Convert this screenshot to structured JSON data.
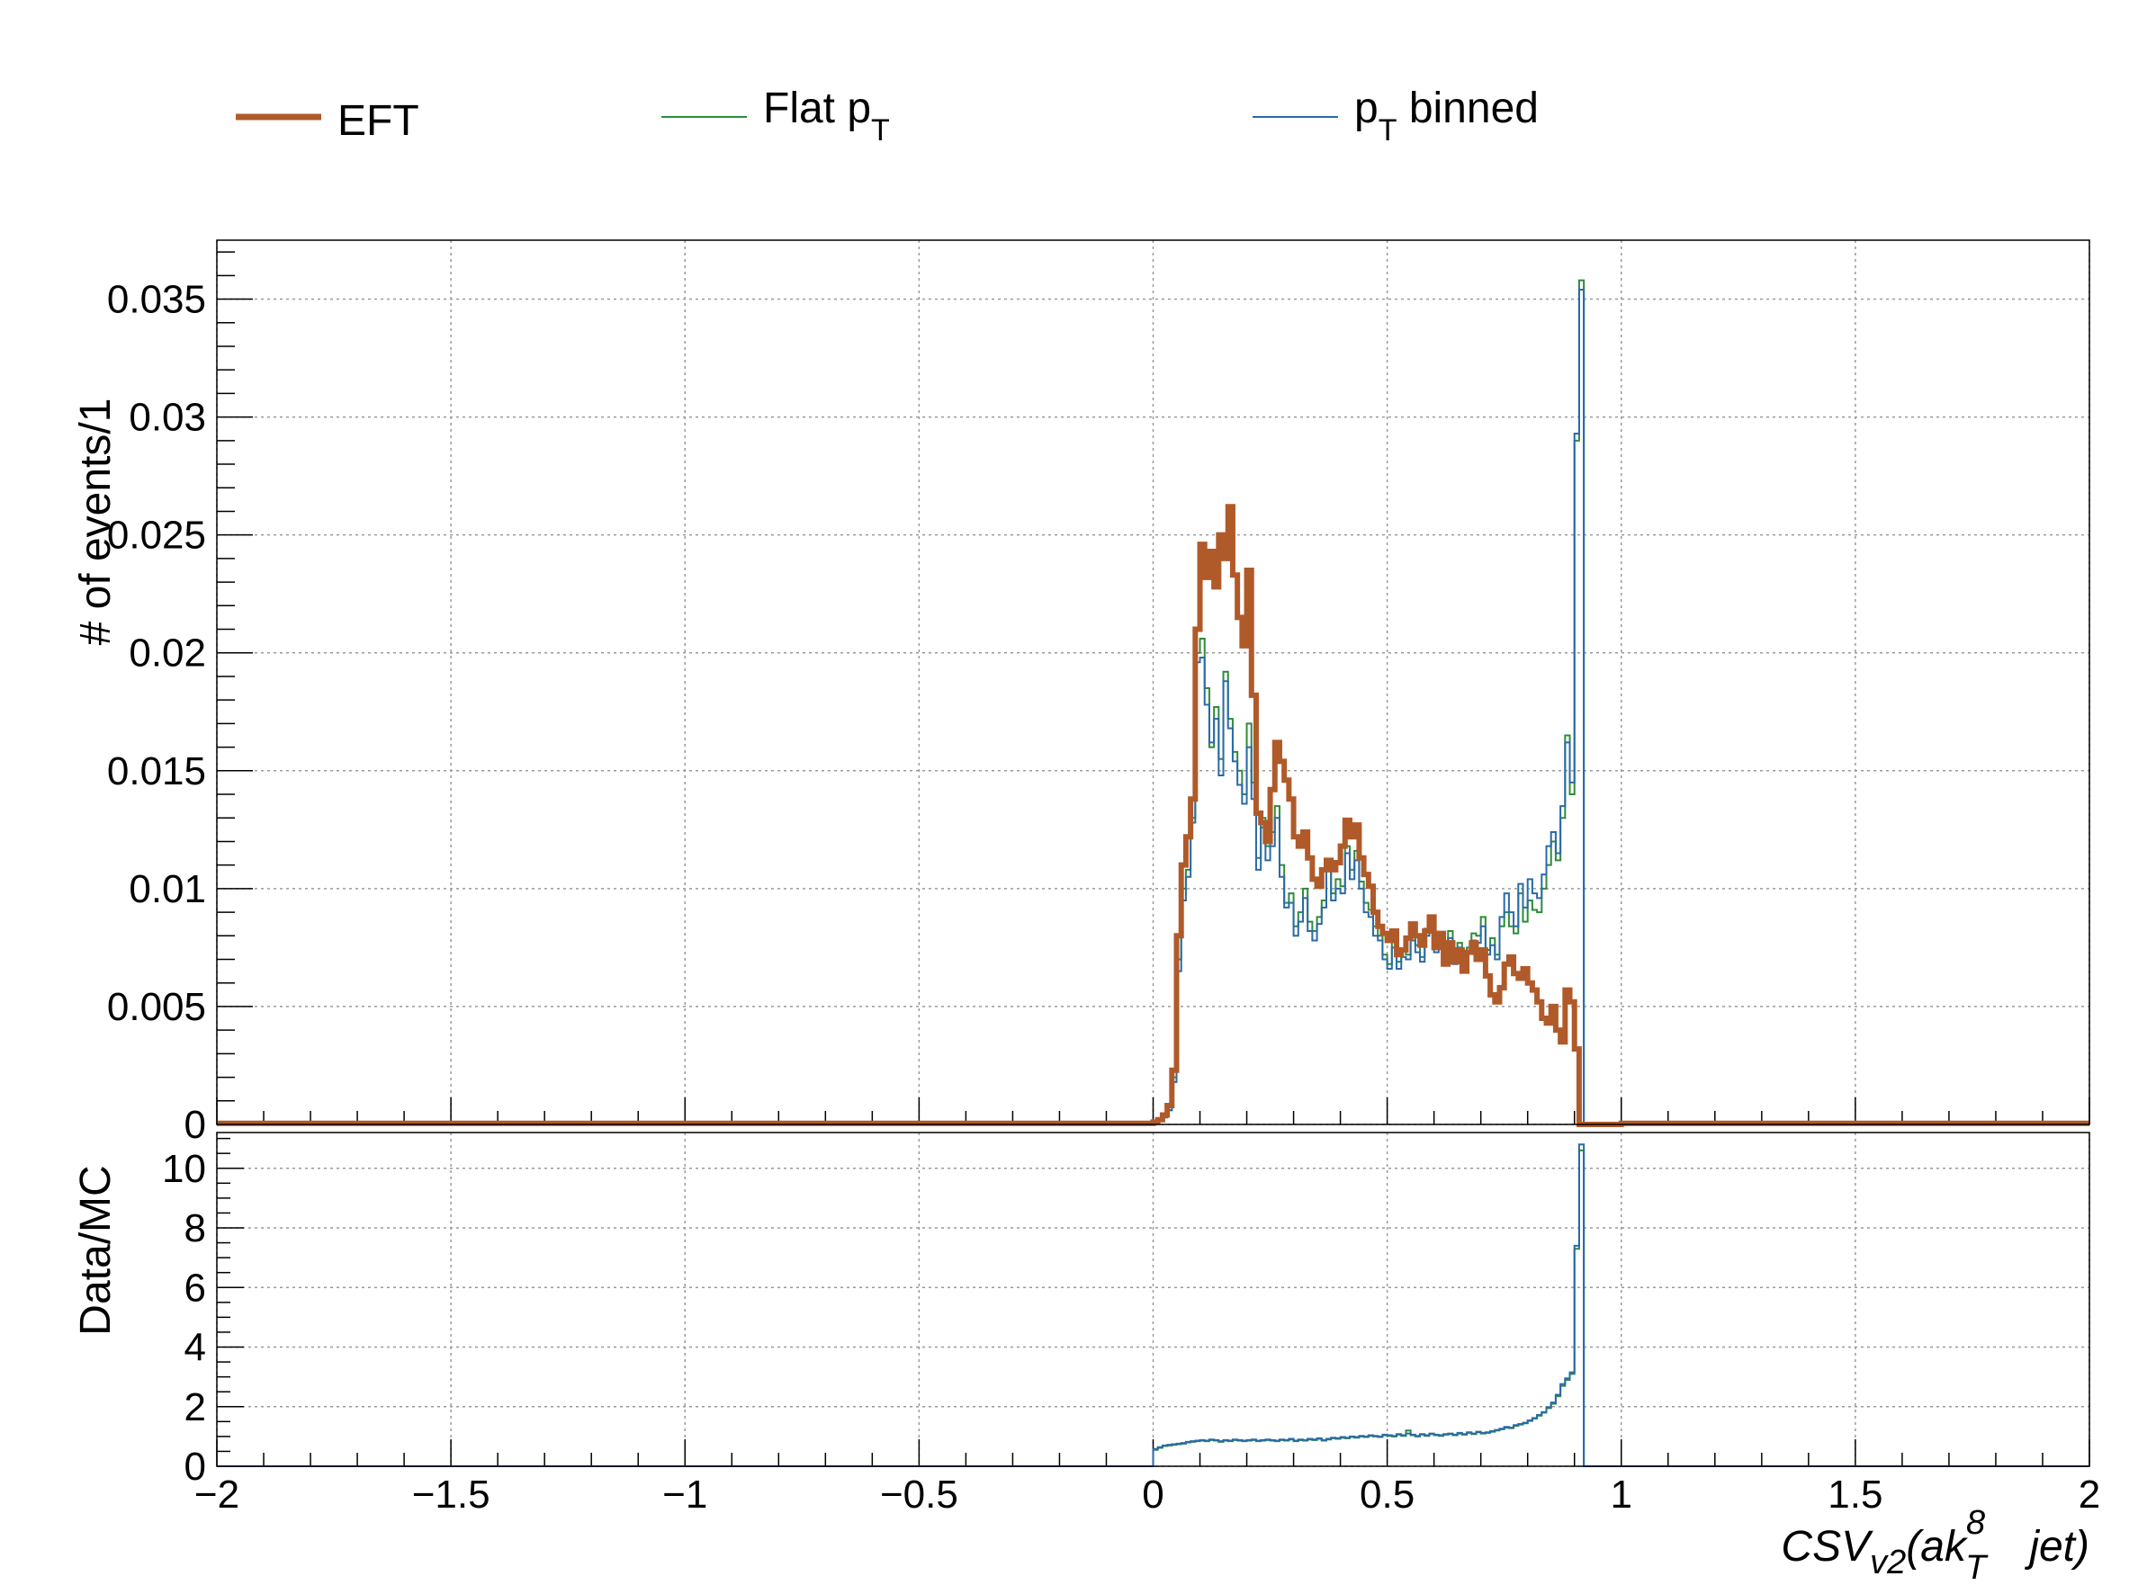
{
  "legend": [
    {
      "name": "EFT",
      "color": "#b05a2a"
    },
    {
      "name_main": "Flat p",
      "name_sub": "T",
      "color": "#2e8b3a"
    },
    {
      "name_main": "p",
      "name_sub": "T",
      "name_rest": " binned",
      "color": "#2a6aa8"
    }
  ],
  "chart_data": [
    {
      "type": "line",
      "style": "step-histogram",
      "ylabel": "# of events/1",
      "xlim": [
        -2,
        2
      ],
      "ylim": [
        0,
        0.0375
      ],
      "grid": true,
      "legend_position": "top",
      "x_tick_labels": [
        -2,
        -1.5,
        -1,
        -0.5,
        0,
        0.5,
        1,
        1.5,
        2
      ],
      "y_tick_labels": [
        "0",
        "0.005",
        "0.01",
        "0.015",
        "0.02",
        "0.025",
        "0.03",
        "0.035"
      ],
      "x": [
        0.0,
        0.01,
        0.02,
        0.03,
        0.04,
        0.05,
        0.06,
        0.07,
        0.08,
        0.09,
        0.1,
        0.11,
        0.12,
        0.13,
        0.14,
        0.15,
        0.16,
        0.17,
        0.18,
        0.19,
        0.2,
        0.21,
        0.22,
        0.23,
        0.24,
        0.25,
        0.26,
        0.27,
        0.28,
        0.29,
        0.3,
        0.31,
        0.32,
        0.33,
        0.34,
        0.35,
        0.36,
        0.37,
        0.38,
        0.39,
        0.4,
        0.41,
        0.42,
        0.43,
        0.44,
        0.45,
        0.46,
        0.47,
        0.48,
        0.49,
        0.5,
        0.51,
        0.52,
        0.53,
        0.54,
        0.55,
        0.56,
        0.57,
        0.58,
        0.59,
        0.6,
        0.61,
        0.62,
        0.63,
        0.64,
        0.65,
        0.66,
        0.67,
        0.68,
        0.69,
        0.7,
        0.71,
        0.72,
        0.73,
        0.74,
        0.75,
        0.76,
        0.77,
        0.78,
        0.79,
        0.8,
        0.81,
        0.82,
        0.83,
        0.84,
        0.85,
        0.86,
        0.87,
        0.88,
        0.89,
        0.9,
        0.91,
        0.92,
        0.93,
        0.94,
        0.95,
        0.96,
        0.97,
        0.98,
        0.99
      ],
      "series": [
        {
          "name": "EFT",
          "color": "#b05a2a",
          "line_width": 6,
          "values": [
            0.0001,
            0.0002,
            0.0004,
            0.0008,
            0.0023,
            0.008,
            0.011,
            0.0122,
            0.0138,
            0.021,
            0.0246,
            0.0232,
            0.0243,
            0.0228,
            0.025,
            0.024,
            0.0262,
            0.0233,
            0.0215,
            0.0203,
            0.0235,
            0.0182,
            0.0132,
            0.0128,
            0.012,
            0.0142,
            0.0162,
            0.0154,
            0.0146,
            0.0138,
            0.0122,
            0.0118,
            0.0124,
            0.0113,
            0.0104,
            0.0101,
            0.0108,
            0.0112,
            0.0108,
            0.0111,
            0.0118,
            0.0129,
            0.0122,
            0.0127,
            0.0113,
            0.0106,
            0.0101,
            0.009,
            0.0084,
            0.0081,
            0.0078,
            0.0082,
            0.0072,
            0.0074,
            0.0079,
            0.0085,
            0.008,
            0.0076,
            0.0082,
            0.0088,
            0.0075,
            0.0081,
            0.0068,
            0.0077,
            0.0069,
            0.0074,
            0.0065,
            0.0073,
            0.0077,
            0.007,
            0.0074,
            0.0063,
            0.0055,
            0.0052,
            0.0058,
            0.0068,
            0.0071,
            0.0064,
            0.0062,
            0.0066,
            0.006,
            0.0057,
            0.0052,
            0.0045,
            0.0043,
            0.005,
            0.004,
            0.0035,
            0.0057,
            0.0052,
            0.0032,
            0.0,
            0.0,
            0.0,
            0.0,
            0.0,
            0.0,
            0.0,
            0.0,
            0.0
          ]
        },
        {
          "name": "Flat pT",
          "color": "#2e8b3a",
          "line_width": 2,
          "values": [
            0.0001,
            0.0002,
            0.0003,
            0.0006,
            0.002,
            0.007,
            0.01,
            0.0108,
            0.013,
            0.02,
            0.0206,
            0.0185,
            0.016,
            0.0177,
            0.0155,
            0.0192,
            0.0172,
            0.0158,
            0.015,
            0.014,
            0.017,
            0.0145,
            0.0113,
            0.013,
            0.0118,
            0.0124,
            0.0135,
            0.011,
            0.0094,
            0.0098,
            0.0084,
            0.009,
            0.01,
            0.0086,
            0.0082,
            0.0088,
            0.0095,
            0.0112,
            0.0098,
            0.0104,
            0.0101,
            0.0118,
            0.0108,
            0.0116,
            0.0103,
            0.0094,
            0.0091,
            0.0084,
            0.008,
            0.0072,
            0.0068,
            0.0078,
            0.0069,
            0.0074,
            0.0072,
            0.008,
            0.0076,
            0.0071,
            0.0083,
            0.0086,
            0.0076,
            0.0078,
            0.0072,
            0.0082,
            0.007,
            0.0077,
            0.0069,
            0.0075,
            0.0081,
            0.008,
            0.0088,
            0.0074,
            0.0079,
            0.0072,
            0.0084,
            0.009,
            0.0084,
            0.0081,
            0.0098,
            0.0086,
            0.0095,
            0.0091,
            0.009,
            0.01,
            0.011,
            0.012,
            0.0112,
            0.013,
            0.0165,
            0.014,
            0.029,
            0.0358,
            0.0,
            0.0,
            0.0,
            0.0,
            0.0,
            0.0,
            0.0,
            0.0
          ]
        },
        {
          "name": "pT binned",
          "color": "#2a6aa8",
          "line_width": 2,
          "values": [
            0.0001,
            0.0002,
            0.0003,
            0.0006,
            0.0018,
            0.0065,
            0.0095,
            0.0105,
            0.0128,
            0.0196,
            0.0198,
            0.0178,
            0.0162,
            0.0172,
            0.0148,
            0.0188,
            0.0168,
            0.0154,
            0.0144,
            0.0136,
            0.016,
            0.0138,
            0.0108,
            0.0126,
            0.0112,
            0.0118,
            0.013,
            0.0105,
            0.0092,
            0.0094,
            0.008,
            0.0086,
            0.0096,
            0.0082,
            0.0078,
            0.0085,
            0.0092,
            0.0108,
            0.0095,
            0.01,
            0.0098,
            0.0115,
            0.0104,
            0.0112,
            0.01,
            0.009,
            0.0088,
            0.008,
            0.0078,
            0.007,
            0.0066,
            0.0075,
            0.0066,
            0.0071,
            0.007,
            0.0078,
            0.0073,
            0.0069,
            0.008,
            0.0084,
            0.0073,
            0.0076,
            0.007,
            0.0079,
            0.0068,
            0.0075,
            0.0067,
            0.0073,
            0.0078,
            0.0077,
            0.0084,
            0.0072,
            0.0076,
            0.007,
            0.0088,
            0.0098,
            0.009,
            0.0084,
            0.0102,
            0.0092,
            0.0104,
            0.0098,
            0.0096,
            0.0106,
            0.0118,
            0.0124,
            0.0115,
            0.0135,
            0.0162,
            0.0145,
            0.0293,
            0.0354,
            0.0,
            0.0,
            0.0,
            0.0,
            0.0,
            0.0,
            0.0,
            0.0
          ]
        }
      ]
    },
    {
      "type": "line",
      "style": "step-histogram",
      "ylabel": "Data/MC",
      "xlabel_main": "CSV",
      "xlabel_sub": "v2",
      "xlabel_mid": "(ak",
      "xlabel_sup": "8",
      "xlabel_sub2": "T",
      "xlabel_end": "jet)",
      "xlim": [
        -2,
        2
      ],
      "ylim": [
        0,
        11.2
      ],
      "grid": true,
      "x_tick_labels": [
        "−2",
        "−1.5",
        "−1",
        "−0.5",
        "0",
        "0.5",
        "1",
        "1.5",
        "2"
      ],
      "y_tick_labels": [
        "0",
        "2",
        "4",
        "6",
        "8",
        "10"
      ],
      "series": [
        {
          "name": "Flat pT",
          "color": "#2e8b3a",
          "values": [
            0.55,
            0.62,
            0.68,
            0.7,
            0.72,
            0.74,
            0.76,
            0.8,
            0.82,
            0.84,
            0.86,
            0.84,
            0.88,
            0.86,
            0.82,
            0.86,
            0.84,
            0.88,
            0.86,
            0.84,
            0.86,
            0.88,
            0.84,
            0.86,
            0.88,
            0.86,
            0.84,
            0.88,
            0.86,
            0.9,
            0.84,
            0.88,
            0.86,
            0.9,
            0.88,
            0.92,
            0.86,
            0.9,
            0.94,
            0.92,
            0.96,
            0.94,
            0.98,
            0.96,
            1.0,
            0.98,
            1.02,
            1.0,
            0.98,
            1.04,
            1.02,
            1.0,
            1.06,
            1.02,
            1.2,
            1.04,
            1.0,
            1.06,
            1.02,
            1.08,
            1.04,
            1.02,
            1.06,
            1.08,
            1.04,
            1.1,
            1.06,
            1.12,
            1.08,
            1.14,
            1.1,
            1.12,
            1.16,
            1.2,
            1.24,
            1.3,
            1.28,
            1.36,
            1.4,
            1.44,
            1.52,
            1.6,
            1.7,
            1.8,
            1.95,
            2.1,
            2.35,
            2.7,
            2.9,
            3.1,
            7.3,
            10.6,
            0,
            0,
            0,
            0,
            0,
            0,
            0,
            0
          ]
        },
        {
          "name": "pT binned",
          "color": "#2a6aa8",
          "values": [
            0.58,
            0.64,
            0.7,
            0.72,
            0.74,
            0.76,
            0.78,
            0.82,
            0.84,
            0.86,
            0.88,
            0.86,
            0.9,
            0.88,
            0.84,
            0.88,
            0.86,
            0.9,
            0.88,
            0.86,
            0.88,
            0.9,
            0.86,
            0.88,
            0.9,
            0.88,
            0.86,
            0.9,
            0.88,
            0.92,
            0.86,
            0.9,
            0.88,
            0.92,
            0.9,
            0.94,
            0.88,
            0.92,
            0.96,
            0.94,
            0.98,
            0.96,
            1.0,
            0.98,
            1.02,
            1.0,
            1.04,
            1.02,
            1.0,
            1.06,
            1.04,
            1.02,
            1.08,
            1.04,
            1.1,
            1.06,
            1.02,
            1.08,
            1.04,
            1.1,
            1.06,
            1.04,
            1.08,
            1.1,
            1.06,
            1.12,
            1.08,
            1.14,
            1.1,
            1.16,
            1.12,
            1.14,
            1.18,
            1.22,
            1.26,
            1.32,
            1.3,
            1.38,
            1.42,
            1.46,
            1.54,
            1.62,
            1.72,
            1.82,
            1.98,
            2.14,
            2.4,
            2.76,
            2.95,
            3.15,
            7.4,
            10.8,
            0,
            0,
            0,
            0,
            0,
            0,
            0,
            0
          ]
        }
      ]
    }
  ]
}
